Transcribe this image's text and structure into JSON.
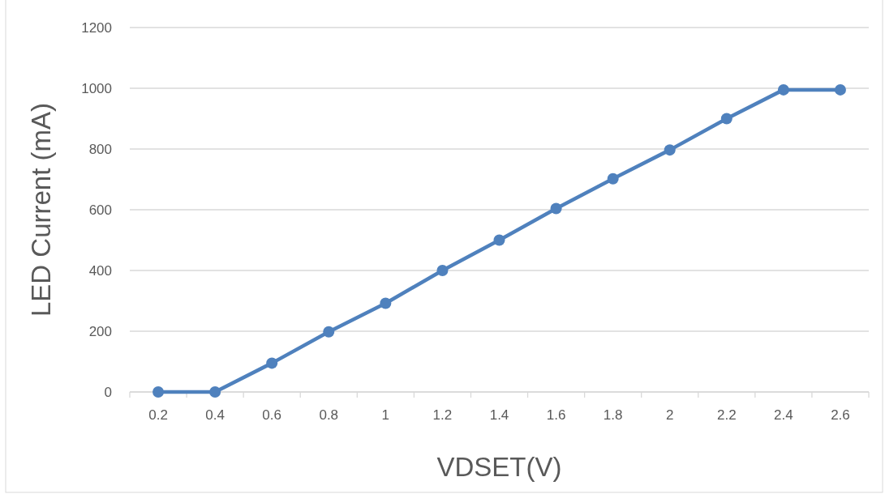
{
  "chart_data": {
    "type": "line",
    "xlabel": "VDSET(V)",
    "ylabel": "LED Current (mA)",
    "categories": [
      "0.2",
      "0.4",
      "0.6",
      "0.8",
      "1",
      "1.2",
      "1.4",
      "1.6",
      "1.8",
      "2",
      "2.2",
      "2.4",
      "2.6"
    ],
    "series": [
      {
        "color": "#4f81bd",
        "values": [
          0,
          0,
          95,
          198,
          292,
          400,
          500,
          604,
          702,
          797,
          900,
          995,
          995
        ]
      }
    ],
    "ylim": [
      0,
      1200
    ],
    "yticks": [
      0,
      200,
      400,
      600,
      800,
      1000,
      1200
    ],
    "grid": "y",
    "marker": "circle",
    "line_style": "solid"
  }
}
